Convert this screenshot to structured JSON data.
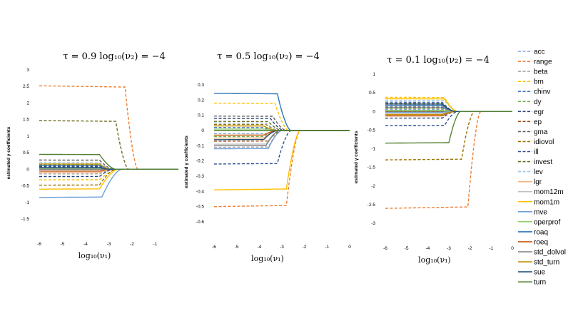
{
  "chart_data": [
    {
      "type": "line",
      "title": "τ = 0.9  log₁₀(ν₂) = −4",
      "xlabel": "log₁₀(ν₁)",
      "ylabel": "estimated γ coefficients",
      "xlim": [
        -6,
        0
      ],
      "ylim": [
        -1.5,
        3
      ],
      "xticks": [
        -6,
        -5,
        -4,
        -3,
        -2,
        -1
      ],
      "yticks": [
        -1.5,
        -1,
        -0.5,
        0,
        0.5,
        1,
        1.5,
        2,
        2.5,
        3
      ],
      "series": [
        {
          "name": "acc",
          "start": 0.06,
          "cut": -3.4,
          "end": -2.8
        },
        {
          "name": "range",
          "start": 2.52,
          "cut": -2.3,
          "end": -1.75
        },
        {
          "name": "beta",
          "start": -0.14,
          "cut": -3.4,
          "end": -2.7
        },
        {
          "name": "bm",
          "start": -0.32,
          "cut": -3.4,
          "end": -2.6
        },
        {
          "name": "chinv",
          "start": 0.04,
          "cut": -3.4,
          "end": -2.8
        },
        {
          "name": "dy",
          "start": 0.14,
          "cut": -3.4,
          "end": -2.8
        },
        {
          "name": "egr",
          "start": -0.22,
          "cut": -3.4,
          "end": -2.8
        },
        {
          "name": "ep",
          "start": 0.1,
          "cut": -3.4,
          "end": -2.8
        },
        {
          "name": "gma",
          "start": 0.28,
          "cut": -3.4,
          "end": -2.8
        },
        {
          "name": "idiovol",
          "start": -0.48,
          "cut": -3.4,
          "end": -2.7
        },
        {
          "name": "ill",
          "start": 0.08,
          "cut": -3.4,
          "end": -2.8
        },
        {
          "name": "invest",
          "start": 1.47,
          "cut": -2.7,
          "end": -2.15
        },
        {
          "name": "lev",
          "start": 0.2,
          "cut": -3.4,
          "end": -2.8
        },
        {
          "name": "lgr",
          "start": -0.1,
          "cut": -3.4,
          "end": -2.9
        },
        {
          "name": "mom12m",
          "start": -0.04,
          "cut": -3.4,
          "end": -2.9
        },
        {
          "name": "mom1m",
          "start": -0.6,
          "cut": -3.4,
          "end": -2.6
        },
        {
          "name": "mve",
          "start": -0.85,
          "cut": -3.3,
          "end": -2.45
        },
        {
          "name": "operprof",
          "start": 0.02,
          "cut": -3.4,
          "end": -2.9
        },
        {
          "name": "roaq",
          "start": 0.12,
          "cut": -3.4,
          "end": -2.9
        },
        {
          "name": "roeq",
          "start": -0.06,
          "cut": -3.4,
          "end": -2.9
        },
        {
          "name": "std_dolvol",
          "start": 0.0,
          "cut": -3.4,
          "end": -2.9
        },
        {
          "name": "std_turn",
          "start": 0.16,
          "cut": -3.4,
          "end": -2.9
        },
        {
          "name": "sue",
          "start": 0.05,
          "cut": -3.4,
          "end": -2.9
        },
        {
          "name": "turn",
          "start": 0.45,
          "cut": -3.4,
          "end": -2.7
        }
      ]
    },
    {
      "type": "line",
      "title": "τ = 0.5  log₁₀(ν₂) = −4",
      "xlabel": "log₁₀(ν₁)",
      "ylabel": "estimated γ coefficients",
      "xlim": [
        -6,
        0
      ],
      "ylim": [
        -0.6,
        0.3
      ],
      "xticks": [
        -6,
        -5,
        -4,
        -3,
        -2,
        -1,
        0
      ],
      "yticks": [
        -0.6,
        -0.5,
        -0.4,
        -0.3,
        -0.2,
        -0.1,
        0,
        0.1,
        0.2,
        0.3
      ],
      "series": [
        {
          "name": "acc",
          "start": -0.02,
          "cut": -3.7,
          "end": -3.1
        },
        {
          "name": "range",
          "start": -0.5,
          "cut": -2.8,
          "end": -2.2
        },
        {
          "name": "beta",
          "start": -0.11,
          "cut": -3.6,
          "end": -3.0
        },
        {
          "name": "bm",
          "start": 0.18,
          "cut": -3.3,
          "end": -2.7
        },
        {
          "name": "chinv",
          "start": 0.02,
          "cut": -3.8,
          "end": -3.2
        },
        {
          "name": "dy",
          "start": -0.04,
          "cut": -3.8,
          "end": -3.2
        },
        {
          "name": "egr",
          "start": 0.08,
          "cut": -3.5,
          "end": -2.9
        },
        {
          "name": "ep",
          "start": -0.07,
          "cut": -3.6,
          "end": -3.0
        },
        {
          "name": "gma",
          "start": 0.095,
          "cut": -3.4,
          "end": -2.8
        },
        {
          "name": "idiovol",
          "start": 0.04,
          "cut": -3.7,
          "end": -3.1
        },
        {
          "name": "ill",
          "start": -0.22,
          "cut": -3.2,
          "end": -2.6
        },
        {
          "name": "invest",
          "start": 0.06,
          "cut": -3.6,
          "end": -3.0
        },
        {
          "name": "lev",
          "start": 0.05,
          "cut": -3.7,
          "end": -3.1
        },
        {
          "name": "lgr",
          "start": -0.05,
          "cut": -3.8,
          "end": -3.2
        },
        {
          "name": "mom12m",
          "start": -0.09,
          "cut": -3.7,
          "end": -3.1
        },
        {
          "name": "mom1m",
          "start": -0.39,
          "cut": -2.8,
          "end": -2.2
        },
        {
          "name": "mve",
          "start": -0.12,
          "cut": -3.6,
          "end": -3.0
        },
        {
          "name": "operprof",
          "start": 0.01,
          "cut": -3.8,
          "end": -3.2
        },
        {
          "name": "roaq",
          "start": 0.245,
          "cut": -3.2,
          "end": -2.6
        },
        {
          "name": "roeq",
          "start": -0.03,
          "cut": -3.8,
          "end": -3.2
        },
        {
          "name": "std_dolvol",
          "start": -0.1,
          "cut": -3.7,
          "end": -3.1
        },
        {
          "name": "std_turn",
          "start": 0.03,
          "cut": -3.8,
          "end": -3.2
        },
        {
          "name": "sue",
          "start": -0.06,
          "cut": -3.8,
          "end": -3.2
        },
        {
          "name": "turn",
          "start": 0.0,
          "cut": -3.8,
          "end": -3.2
        }
      ]
    },
    {
      "type": "line",
      "title": "τ = 0.1  log₁₀(ν₂) = −4",
      "xlabel": "log₁₀(ν₁)",
      "ylabel": "estimated γ coefficients",
      "xlim": [
        -6,
        0
      ],
      "ylim": [
        -3,
        1
      ],
      "xticks": [
        -6,
        -5,
        -4,
        -3,
        -2,
        -1,
        0
      ],
      "yticks": [
        -3,
        -2.5,
        -2,
        -1.5,
        -1,
        -0.5,
        0,
        0.5,
        1
      ],
      "series": [
        {
          "name": "acc",
          "start": 0.05,
          "cut": -3.3,
          "end": -2.7
        },
        {
          "name": "range",
          "start": -2.6,
          "cut": -2.1,
          "end": -1.5
        },
        {
          "name": "beta",
          "start": 0.18,
          "cut": -3.3,
          "end": -2.7
        },
        {
          "name": "bm",
          "start": 0.38,
          "cut": -3.2,
          "end": -2.6
        },
        {
          "name": "chinv",
          "start": 0.25,
          "cut": -3.3,
          "end": -2.7
        },
        {
          "name": "dy",
          "start": 0.08,
          "cut": -3.3,
          "end": -2.7
        },
        {
          "name": "egr",
          "start": -0.18,
          "cut": -3.3,
          "end": -2.7
        },
        {
          "name": "ep",
          "start": 0.0,
          "cut": -3.3,
          "end": -2.7
        },
        {
          "name": "gma",
          "start": 0.12,
          "cut": -3.3,
          "end": -2.7
        },
        {
          "name": "idiovol",
          "start": -1.3,
          "cut": -2.4,
          "end": -1.8
        },
        {
          "name": "ill",
          "start": -0.38,
          "cut": -3.2,
          "end": -2.6
        },
        {
          "name": "invest",
          "start": 0.22,
          "cut": -3.3,
          "end": -2.7
        },
        {
          "name": "lev",
          "start": 0.3,
          "cut": -3.2,
          "end": -2.6
        },
        {
          "name": "lgr",
          "start": -0.1,
          "cut": -3.3,
          "end": -2.7
        },
        {
          "name": "mom12m",
          "start": -0.05,
          "cut": -3.3,
          "end": -2.7
        },
        {
          "name": "mom1m",
          "start": 0.34,
          "cut": -3.2,
          "end": -2.6
        },
        {
          "name": "mve",
          "start": -0.02,
          "cut": -3.3,
          "end": -2.7
        },
        {
          "name": "operprof",
          "start": 0.03,
          "cut": -3.3,
          "end": -2.7
        },
        {
          "name": "roaq",
          "start": 0.16,
          "cut": -3.3,
          "end": -2.7
        },
        {
          "name": "roeq",
          "start": -0.12,
          "cut": -3.3,
          "end": -2.7
        },
        {
          "name": "std_dolvol",
          "start": 0.1,
          "cut": -3.3,
          "end": -2.7
        },
        {
          "name": "std_turn",
          "start": -0.08,
          "cut": -3.3,
          "end": -2.7
        },
        {
          "name": "sue",
          "start": 0.2,
          "cut": -3.3,
          "end": -2.7
        },
        {
          "name": "turn",
          "start": -0.85,
          "cut": -3.0,
          "end": -2.45
        }
      ]
    }
  ],
  "legend": [
    {
      "name": "acc",
      "color": "#7fa7d9",
      "dash": true
    },
    {
      "name": "range",
      "color": "#ed7d31",
      "dash": true
    },
    {
      "name": "beta",
      "color": "#a5a5a5",
      "dash": true
    },
    {
      "name": "bm",
      "color": "#ffc000",
      "dash": true
    },
    {
      "name": "chinv",
      "color": "#4472c4",
      "dash": true
    },
    {
      "name": "dy",
      "color": "#70ad47",
      "dash": true
    },
    {
      "name": "egr",
      "color": "#264478",
      "dash": true
    },
    {
      "name": "ep",
      "color": "#9e480e",
      "dash": true
    },
    {
      "name": "gma",
      "color": "#636363",
      "dash": true
    },
    {
      "name": "idiovol",
      "color": "#997300",
      "dash": true
    },
    {
      "name": "ill",
      "color": "#2f4f8f",
      "dash": true
    },
    {
      "name": "invest",
      "color": "#6b6b1e",
      "dash": true
    },
    {
      "name": "lev",
      "color": "#9dc3e6",
      "dash": true
    },
    {
      "name": "lgr",
      "color": "#f4b183",
      "dash": false
    },
    {
      "name": "mom12m",
      "color": "#c0c0c0",
      "dash": false
    },
    {
      "name": "mom1m",
      "color": "#ffc000",
      "dash": false
    },
    {
      "name": "mve",
      "color": "#6f9fd8",
      "dash": false
    },
    {
      "name": "operprof",
      "color": "#8fcf6f",
      "dash": false
    },
    {
      "name": "roaq",
      "color": "#2e75b6",
      "dash": false
    },
    {
      "name": "roeq",
      "color": "#c55a11",
      "dash": false
    },
    {
      "name": "std_dolvol",
      "color": "#7f7f7f",
      "dash": false
    },
    {
      "name": "std_turn",
      "color": "#bf9000",
      "dash": false
    },
    {
      "name": "sue",
      "color": "#1f4e79",
      "dash": false
    },
    {
      "name": "turn",
      "color": "#548235",
      "dash": false
    }
  ]
}
